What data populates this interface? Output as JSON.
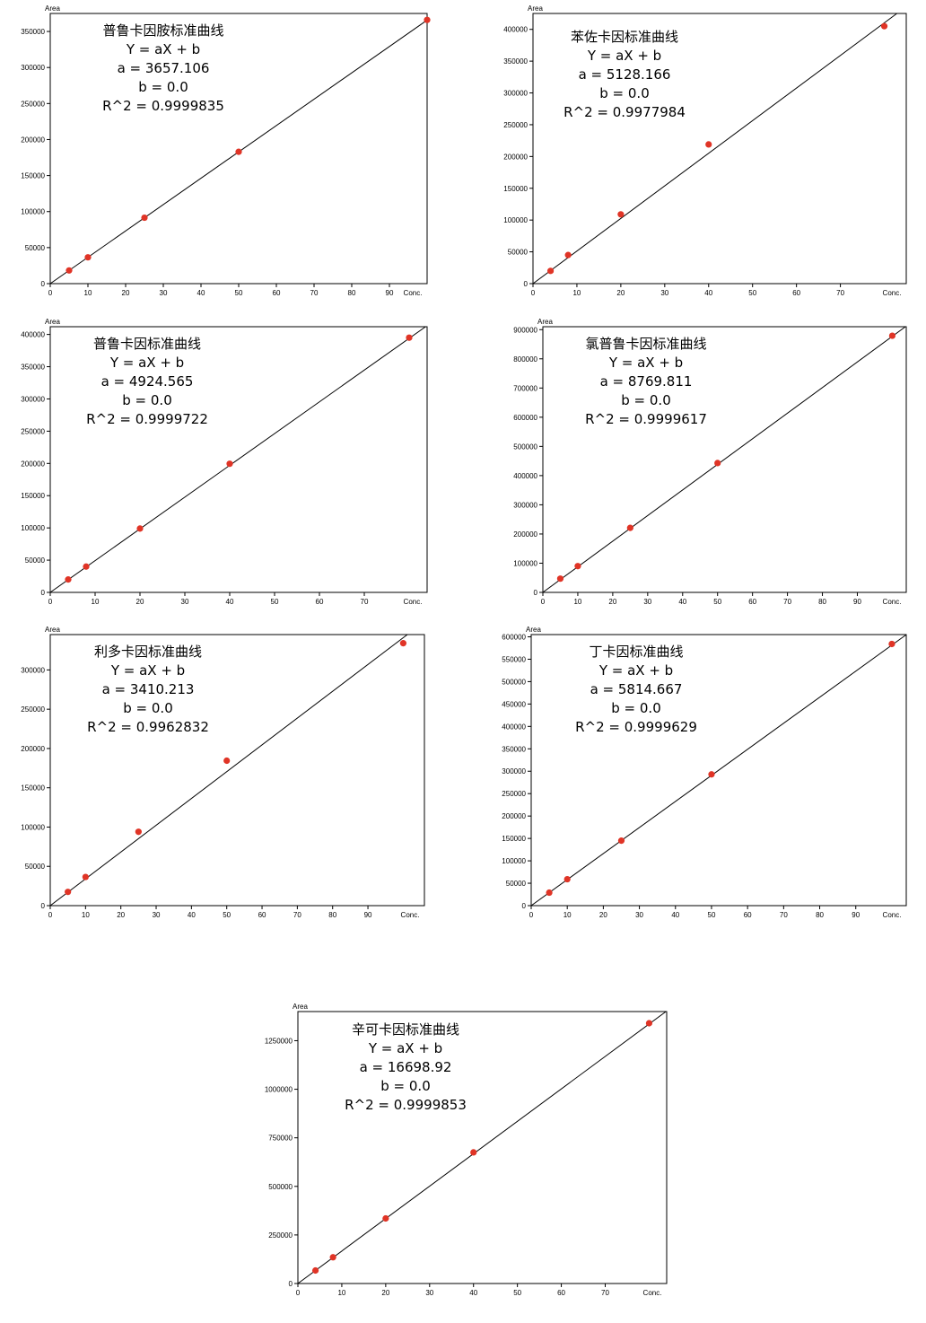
{
  "chart_data": [
    {
      "type": "scatter",
      "title": "普鲁卡因胺标准曲线",
      "equation": "Y = aX + b",
      "a_text": "a = 3657.106",
      "b_text": "b = 0.0",
      "r2_text": "R^2 = 0.9999835",
      "xlabel": "Conc.",
      "ylabel": "Area",
      "xlim": [
        0,
        100
      ],
      "ylim": [
        0,
        375000
      ],
      "xticks": [
        0,
        10,
        20,
        30,
        40,
        50,
        60,
        70,
        80,
        90
      ],
      "yticks": [
        0,
        50000,
        100000,
        150000,
        200000,
        250000,
        300000,
        350000
      ],
      "slope": 3657.106,
      "x": [
        5,
        10,
        25,
        50,
        100
      ],
      "y": [
        18300,
        36500,
        91500,
        183000,
        366000
      ]
    },
    {
      "type": "scatter",
      "title": "苯佐卡因标准曲线",
      "equation": "Y = aX + b",
      "a_text": "a = 5128.166",
      "b_text": "b = 0.0",
      "r2_text": "R^2 = 0.9977984",
      "xlabel": "Conc.",
      "ylabel": "Area",
      "xlim": [
        0,
        85
      ],
      "ylim": [
        0,
        425000
      ],
      "xticks": [
        0,
        10,
        20,
        30,
        40,
        50,
        60,
        70
      ],
      "yticks": [
        0,
        50000,
        100000,
        150000,
        200000,
        250000,
        300000,
        350000,
        400000
      ],
      "slope": 5128.166,
      "x": [
        4,
        8,
        20,
        40,
        80
      ],
      "y": [
        20000,
        45000,
        109000,
        219000,
        405000
      ]
    },
    {
      "type": "scatter",
      "title": "普鲁卡因标准曲线",
      "equation": "Y = aX + b",
      "a_text": "a = 4924.565",
      "b_text": "b = 0.0",
      "r2_text": "R^2 = 0.9999722",
      "xlabel": "Conc.",
      "ylabel": "Area",
      "xlim": [
        0,
        84
      ],
      "ylim": [
        0,
        412000
      ],
      "xticks": [
        0,
        10,
        20,
        30,
        40,
        50,
        60,
        70
      ],
      "yticks": [
        0,
        50000,
        100000,
        150000,
        200000,
        250000,
        300000,
        350000,
        400000
      ],
      "slope": 4924.565,
      "x": [
        4,
        8,
        20,
        40,
        80
      ],
      "y": [
        20000,
        40000,
        99000,
        199500,
        395000
      ]
    },
    {
      "type": "scatter",
      "title": "氯普鲁卡因标准曲线",
      "equation": "Y = aX + b",
      "a_text": "a = 8769.811",
      "b_text": "b = 0.0",
      "r2_text": "R^2 = 0.9999617",
      "xlabel": "Conc.",
      "ylabel": "Area",
      "xlim": [
        0,
        104
      ],
      "ylim": [
        0,
        910000
      ],
      "xticks": [
        0,
        10,
        20,
        30,
        40,
        50,
        60,
        70,
        80,
        90
      ],
      "yticks": [
        0,
        100000,
        200000,
        300000,
        400000,
        500000,
        600000,
        700000,
        800000,
        900000
      ],
      "slope": 8769.811,
      "x": [
        5,
        10,
        25,
        50,
        100
      ],
      "y": [
        47000,
        90000,
        221000,
        443000,
        879000
      ]
    },
    {
      "type": "scatter",
      "title": "利多卡因标准曲线",
      "equation": "Y = aX + b",
      "a_text": "a = 3410.213",
      "b_text": "b = 0.0",
      "r2_text": "R^2 = 0.9962832",
      "xlabel": "Conc.",
      "ylabel": "Area",
      "xlim": [
        0,
        106
      ],
      "ylim": [
        0,
        345000
      ],
      "xticks": [
        0,
        10,
        20,
        30,
        40,
        50,
        60,
        70,
        80,
        90
      ],
      "yticks": [
        0,
        50000,
        100000,
        150000,
        200000,
        250000,
        300000
      ],
      "slope": 3410.213,
      "x": [
        5,
        10,
        25,
        50,
        100
      ],
      "y": [
        17500,
        36500,
        94000,
        184500,
        334000
      ]
    },
    {
      "type": "scatter",
      "title": "丁卡因标准曲线",
      "equation": "Y = aX + b",
      "a_text": "a = 5814.667",
      "b_text": "b = 0.0",
      "r2_text": "R^2 = 0.9999629",
      "xlabel": "Conc.",
      "ylabel": "Area",
      "xlim": [
        0,
        104
      ],
      "ylim": [
        0,
        605000
      ],
      "xticks": [
        0,
        10,
        20,
        30,
        40,
        50,
        60,
        70,
        80,
        90
      ],
      "yticks": [
        0,
        50000,
        100000,
        150000,
        200000,
        250000,
        300000,
        350000,
        400000,
        450000,
        500000,
        550000,
        600000
      ],
      "slope": 5814.667,
      "x": [
        5,
        10,
        25,
        50,
        100
      ],
      "y": [
        29000,
        59000,
        145000,
        293000,
        584000
      ]
    },
    {
      "type": "scatter",
      "title": "辛可卡因标准曲线",
      "equation": "Y = aX + b",
      "a_text": "a = 16698.92",
      "b_text": "b = 0.0",
      "r2_text": "R^2 = 0.9999853",
      "xlabel": "Conc.",
      "ylabel": "Area",
      "xlim": [
        0,
        84
      ],
      "ylim": [
        0,
        1400000
      ],
      "xticks": [
        0,
        10,
        20,
        30,
        40,
        50,
        60,
        70
      ],
      "yticks": [
        0,
        250000,
        500000,
        750000,
        1000000,
        1250000
      ],
      "slope": 16698.92,
      "x": [
        4,
        8,
        20,
        40,
        80
      ],
      "y": [
        67000,
        135000,
        335000,
        675000,
        1340000
      ]
    }
  ]
}
